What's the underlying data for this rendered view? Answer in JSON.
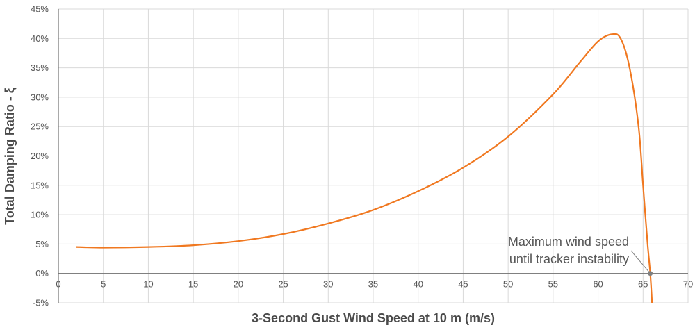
{
  "chart_data": {
    "type": "line",
    "title": "",
    "xlabel": "3-Second Gust Wind Speed at 10 m (m/s)",
    "ylabel": "Total Damping Ratio - ξ",
    "xlim": [
      0,
      70
    ],
    "ylim": [
      -5,
      45
    ],
    "x_ticks": [
      "0",
      "5",
      "10",
      "15",
      "20",
      "25",
      "30",
      "35",
      "40",
      "45",
      "50",
      "55",
      "60",
      "65",
      "70"
    ],
    "y_ticks": [
      "45%",
      "40%",
      "35%",
      "30%",
      "25%",
      "20%",
      "15%",
      "10%",
      "5%",
      "0%",
      "-5%"
    ],
    "grid": true,
    "series": [
      {
        "color": "#f07820",
        "x": [
          2,
          5,
          10,
          15,
          20,
          25,
          30,
          35,
          40,
          45,
          50,
          55,
          58,
          60,
          61.5,
          62.5,
          63.5,
          64.5,
          65,
          65.5,
          65.8,
          66
        ],
        "y": [
          4.5,
          4.4,
          4.5,
          4.8,
          5.5,
          6.7,
          8.5,
          10.8,
          14.0,
          18.0,
          23.3,
          30.5,
          36.0,
          39.5,
          40.7,
          40.0,
          35.0,
          25.0,
          15.0,
          5.0,
          0.0,
          -5.0
        ]
      }
    ],
    "annotation": {
      "lines": [
        "Maximum wind speed",
        "until tracker instability"
      ],
      "x": 65.8,
      "y": 0
    },
    "colors": {
      "line": "#f07820",
      "grid": "#d9d9d9",
      "axis": "#707070",
      "marker": "#7f7f7f"
    }
  }
}
